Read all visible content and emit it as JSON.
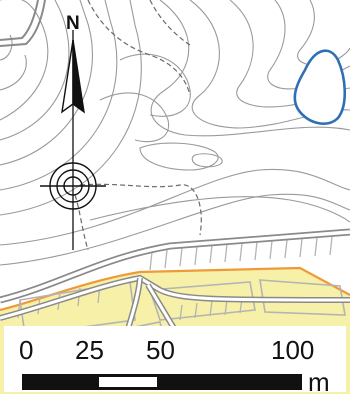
{
  "north_arrow": {
    "label": "N"
  },
  "scale_bar": {
    "ticks": [
      "0",
      "25",
      "50",
      "100"
    ],
    "unit": "m"
  },
  "colors": {
    "background": "#ffffff",
    "contour": "#9a9a9a",
    "trail": "#6a6a6a",
    "road": "#8a8a8a",
    "water": "#2f6fb5",
    "settlement_fill": "#f6f0a8",
    "boundary": "#ef9a3a",
    "building": "#b4b4b4",
    "scale_black": "#111111"
  }
}
